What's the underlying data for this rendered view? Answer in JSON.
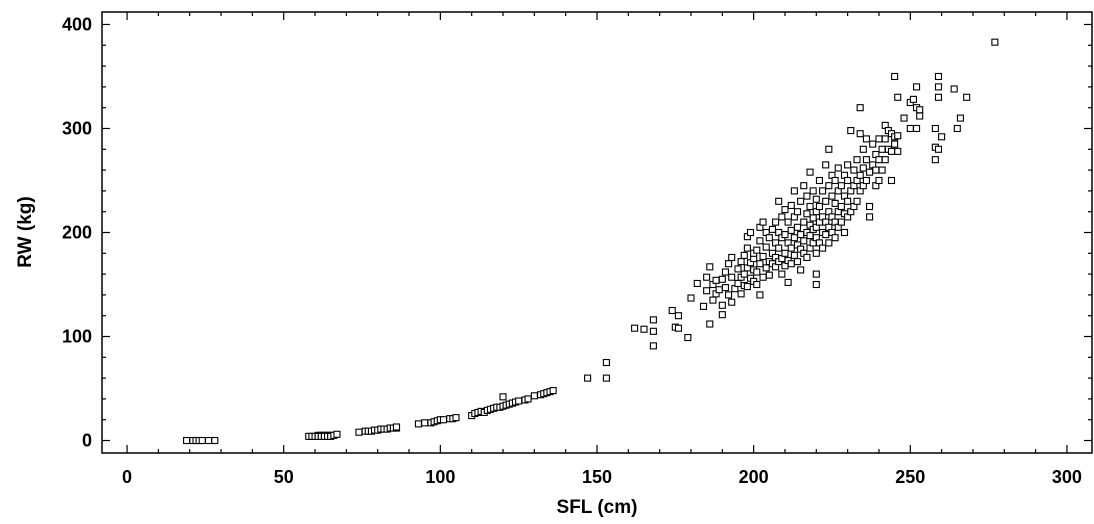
{
  "chart_data": {
    "type": "scatter",
    "title": "",
    "xlabel": "SFL (cm)",
    "ylabel": "RW (kg)",
    "xlim": [
      -8,
      308
    ],
    "ylim": [
      -12,
      412
    ],
    "xticks": [
      0,
      50,
      100,
      150,
      200,
      250,
      300
    ],
    "yticks": [
      0,
      100,
      200,
      300,
      400
    ],
    "marker": "hollow-square",
    "grid": false,
    "legend": "none",
    "series": [
      {
        "points": [
          [
            19,
            0
          ],
          [
            21,
            0
          ],
          [
            22,
            0
          ],
          [
            23,
            0
          ],
          [
            24,
            0
          ],
          [
            26,
            0
          ],
          [
            28,
            0
          ],
          [
            58,
            4
          ],
          [
            59,
            4
          ],
          [
            60,
            4
          ],
          [
            61,
            5
          ],
          [
            61,
            4
          ],
          [
            62,
            5
          ],
          [
            62,
            4
          ],
          [
            63,
            5
          ],
          [
            63,
            4
          ],
          [
            64,
            5
          ],
          [
            64,
            4
          ],
          [
            65,
            5
          ],
          [
            65,
            4
          ],
          [
            66,
            5
          ],
          [
            67,
            6
          ],
          [
            74,
            8
          ],
          [
            76,
            9
          ],
          [
            77,
            9
          ],
          [
            78,
            9
          ],
          [
            79,
            10
          ],
          [
            80,
            10
          ],
          [
            81,
            11
          ],
          [
            82,
            11
          ],
          [
            83,
            11
          ],
          [
            84,
            12
          ],
          [
            85,
            12
          ],
          [
            86,
            12
          ],
          [
            86,
            13
          ],
          [
            93,
            16
          ],
          [
            95,
            17
          ],
          [
            97,
            17
          ],
          [
            98,
            18
          ],
          [
            99,
            19
          ],
          [
            100,
            20
          ],
          [
            101,
            20
          ],
          [
            103,
            21
          ],
          [
            104,
            21
          ],
          [
            105,
            22
          ],
          [
            110,
            24
          ],
          [
            111,
            26
          ],
          [
            112,
            27
          ],
          [
            113,
            28
          ],
          [
            114,
            27
          ],
          [
            115,
            29
          ],
          [
            116,
            30
          ],
          [
            117,
            31
          ],
          [
            118,
            32
          ],
          [
            119,
            32
          ],
          [
            120,
            33
          ],
          [
            120,
            42
          ],
          [
            121,
            34
          ],
          [
            122,
            35
          ],
          [
            123,
            36
          ],
          [
            124,
            37
          ],
          [
            125,
            38
          ],
          [
            127,
            39
          ],
          [
            128,
            40
          ],
          [
            130,
            43
          ],
          [
            132,
            44
          ],
          [
            133,
            45
          ],
          [
            134,
            46
          ],
          [
            135,
            47
          ],
          [
            136,
            48
          ],
          [
            147,
            60
          ],
          [
            153,
            60
          ],
          [
            153,
            75
          ],
          [
            162,
            108
          ],
          [
            165,
            107
          ],
          [
            168,
            91
          ],
          [
            168,
            105
          ],
          [
            168,
            116
          ],
          [
            174,
            125
          ],
          [
            175,
            109
          ],
          [
            176,
            108
          ],
          [
            176,
            120
          ],
          [
            179,
            99
          ],
          [
            180,
            137
          ],
          [
            182,
            151
          ],
          [
            184,
            129
          ],
          [
            185,
            144
          ],
          [
            185,
            157
          ],
          [
            186,
            112
          ],
          [
            186,
            167
          ],
          [
            187,
            135
          ],
          [
            187,
            150
          ],
          [
            188,
            141
          ],
          [
            188,
            154
          ],
          [
            189,
            145
          ],
          [
            190,
            121
          ],
          [
            190,
            130
          ],
          [
            190,
            155
          ],
          [
            191,
            147
          ],
          [
            191,
            162
          ],
          [
            192,
            140
          ],
          [
            192,
            170
          ],
          [
            193,
            133
          ],
          [
            193,
            157
          ],
          [
            193,
            176
          ],
          [
            194,
            146
          ],
          [
            195,
            151
          ],
          [
            195,
            165
          ],
          [
            196,
            141
          ],
          [
            196,
            157
          ],
          [
            196,
            172
          ],
          [
            197,
            149
          ],
          [
            197,
            160
          ],
          [
            197,
            178
          ],
          [
            198,
            148
          ],
          [
            198,
            166
          ],
          [
            198,
            185
          ],
          [
            198,
            196
          ],
          [
            199,
            156
          ],
          [
            199,
            171
          ],
          [
            199,
            200
          ],
          [
            200,
            153
          ],
          [
            200,
            164
          ],
          [
            200,
            175
          ],
          [
            200,
            180
          ],
          [
            201,
            150
          ],
          [
            201,
            162
          ],
          [
            201,
            183
          ],
          [
            202,
            140
          ],
          [
            202,
            170
          ],
          [
            202,
            192
          ],
          [
            202,
            205
          ],
          [
            203,
            157
          ],
          [
            203,
            177
          ],
          [
            203,
            210
          ],
          [
            204,
            166
          ],
          [
            204,
            186
          ],
          [
            204,
            200
          ],
          [
            205,
            159
          ],
          [
            205,
            172
          ],
          [
            205,
            195
          ],
          [
            206,
            170
          ],
          [
            206,
            180
          ],
          [
            206,
            203
          ],
          [
            207,
            167
          ],
          [
            207,
            176
          ],
          [
            207,
            190
          ],
          [
            207,
            210
          ],
          [
            208,
            172
          ],
          [
            208,
            185
          ],
          [
            208,
            200
          ],
          [
            208,
            230
          ],
          [
            209,
            160
          ],
          [
            209,
            175
          ],
          [
            209,
            195
          ],
          [
            209,
            215
          ],
          [
            210,
            168
          ],
          [
            210,
            180
          ],
          [
            210,
            198
          ],
          [
            210,
            222
          ],
          [
            211,
            152
          ],
          [
            211,
            173
          ],
          [
            211,
            190
          ],
          [
            211,
            210
          ],
          [
            212,
            170
          ],
          [
            212,
            185
          ],
          [
            212,
            202
          ],
          [
            212,
            226
          ],
          [
            213,
            178
          ],
          [
            213,
            195
          ],
          [
            213,
            215
          ],
          [
            213,
            240
          ],
          [
            214,
            172
          ],
          [
            214,
            188
          ],
          [
            214,
            205
          ],
          [
            214,
            220
          ],
          [
            215,
            164
          ],
          [
            215,
            184
          ],
          [
            215,
            198
          ],
          [
            215,
            230
          ],
          [
            216,
            180
          ],
          [
            216,
            192
          ],
          [
            216,
            210
          ],
          [
            216,
            245
          ],
          [
            217,
            176
          ],
          [
            217,
            200
          ],
          [
            217,
            218
          ],
          [
            217,
            235
          ],
          [
            218,
            185
          ],
          [
            218,
            197
          ],
          [
            218,
            207
          ],
          [
            218,
            225
          ],
          [
            218,
            258
          ],
          [
            219,
            190
          ],
          [
            219,
            203
          ],
          [
            219,
            214
          ],
          [
            219,
            240
          ],
          [
            220,
            150
          ],
          [
            220,
            160
          ],
          [
            220,
            180
          ],
          [
            220,
            195
          ],
          [
            220,
            205
          ],
          [
            220,
            220
          ],
          [
            220,
            232
          ],
          [
            221,
            190
          ],
          [
            221,
            210
          ],
          [
            221,
            225
          ],
          [
            221,
            250
          ],
          [
            222,
            185
          ],
          [
            222,
            200
          ],
          [
            222,
            215
          ],
          [
            222,
            240
          ],
          [
            223,
            198
          ],
          [
            223,
            210
          ],
          [
            223,
            230
          ],
          [
            223,
            265
          ],
          [
            224,
            190
          ],
          [
            224,
            205
          ],
          [
            224,
            220
          ],
          [
            224,
            245
          ],
          [
            224,
            280
          ],
          [
            225,
            200
          ],
          [
            225,
            215
          ],
          [
            225,
            235
          ],
          [
            225,
            255
          ],
          [
            226,
            195
          ],
          [
            226,
            210
          ],
          [
            226,
            228
          ],
          [
            226,
            250
          ],
          [
            227,
            205
          ],
          [
            227,
            220
          ],
          [
            227,
            240
          ],
          [
            227,
            262
          ],
          [
            228,
            210
          ],
          [
            228,
            225
          ],
          [
            228,
            245
          ],
          [
            229,
            200
          ],
          [
            229,
            218
          ],
          [
            229,
            235
          ],
          [
            229,
            255
          ],
          [
            230,
            215
          ],
          [
            230,
            230
          ],
          [
            230,
            250
          ],
          [
            230,
            265
          ],
          [
            231,
            220
          ],
          [
            231,
            240
          ],
          [
            231,
            298
          ],
          [
            232,
            225
          ],
          [
            232,
            245
          ],
          [
            232,
            260
          ],
          [
            233,
            230
          ],
          [
            233,
            250
          ],
          [
            233,
            270
          ],
          [
            234,
            240
          ],
          [
            234,
            255
          ],
          [
            234,
            295
          ],
          [
            234,
            320
          ],
          [
            235,
            245
          ],
          [
            235,
            262
          ],
          [
            235,
            280
          ],
          [
            236,
            250
          ],
          [
            236,
            270
          ],
          [
            236,
            290
          ],
          [
            237,
            215
          ],
          [
            237,
            225
          ],
          [
            237,
            258
          ],
          [
            238,
            265
          ],
          [
            238,
            285
          ],
          [
            239,
            245
          ],
          [
            239,
            260
          ],
          [
            239,
            275
          ],
          [
            240,
            250
          ],
          [
            240,
            270
          ],
          [
            240,
            290
          ],
          [
            241,
            260
          ],
          [
            241,
            280
          ],
          [
            242,
            270
          ],
          [
            242,
            290
          ],
          [
            242,
            303
          ],
          [
            243,
            280
          ],
          [
            243,
            298
          ],
          [
            244,
            250
          ],
          [
            244,
            278
          ],
          [
            244,
            295
          ],
          [
            245,
            285
          ],
          [
            245,
            292
          ],
          [
            245,
            350
          ],
          [
            246,
            278
          ],
          [
            246,
            293
          ],
          [
            246,
            330
          ],
          [
            248,
            310
          ],
          [
            250,
            300
          ],
          [
            250,
            325
          ],
          [
            251,
            328
          ],
          [
            252,
            300
          ],
          [
            252,
            320
          ],
          [
            252,
            340
          ],
          [
            253,
            312
          ],
          [
            253,
            318
          ],
          [
            258,
            270
          ],
          [
            258,
            282
          ],
          [
            258,
            300
          ],
          [
            259,
            280
          ],
          [
            259,
            330
          ],
          [
            259,
            340
          ],
          [
            259,
            350
          ],
          [
            260,
            292
          ],
          [
            264,
            338
          ],
          [
            265,
            300
          ],
          [
            266,
            310
          ],
          [
            268,
            330
          ],
          [
            277,
            383
          ]
        ]
      }
    ]
  }
}
